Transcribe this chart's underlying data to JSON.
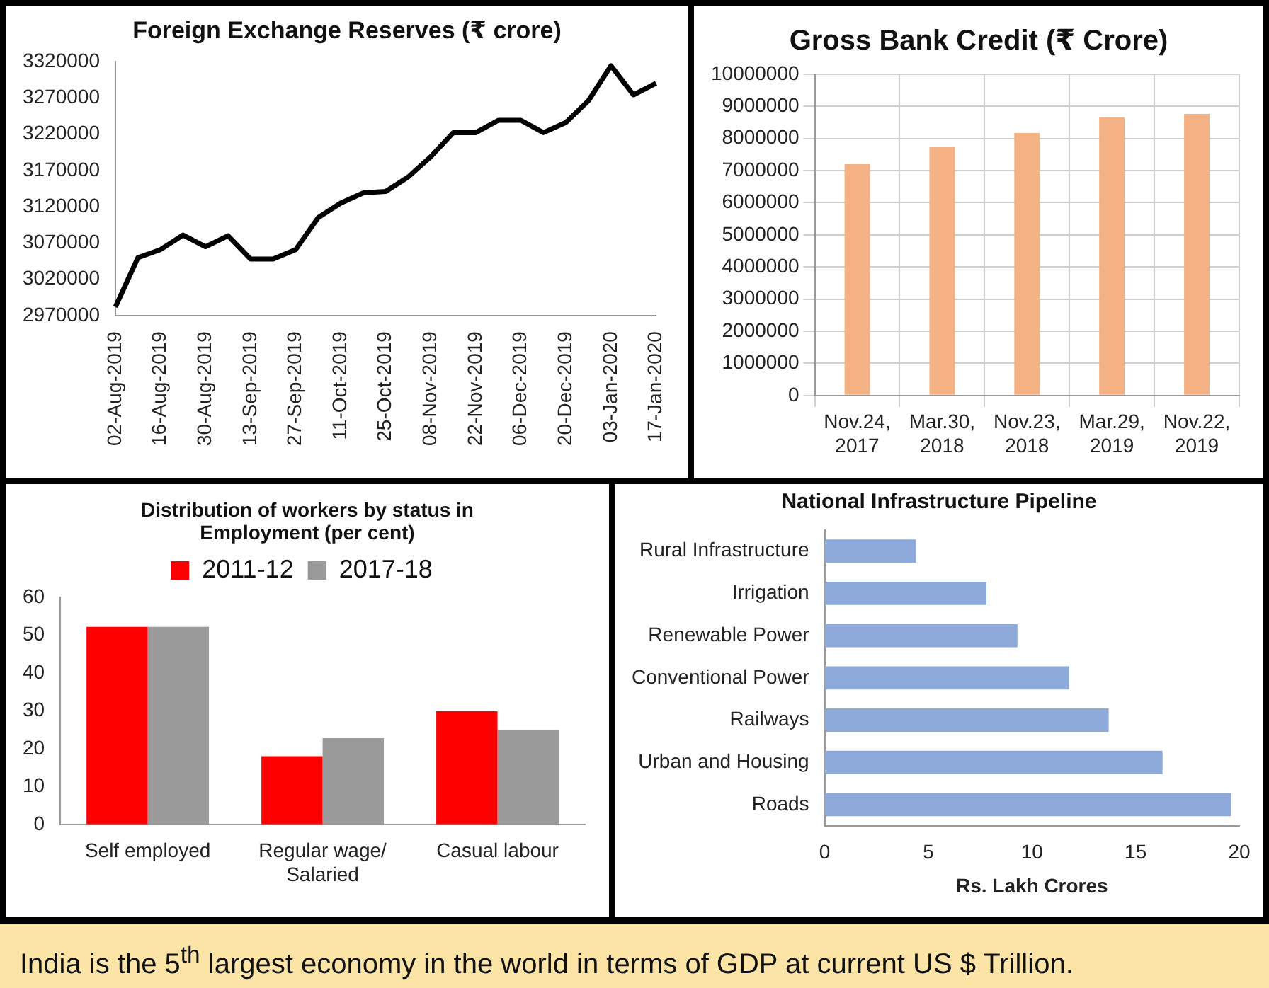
{
  "chart_data": [
    {
      "type": "line",
      "title": "Foreign Exchange Reserves (₹ crore)",
      "categories": [
        "02-Aug-2019",
        null,
        "16-Aug-2019",
        null,
        "30-Aug-2019",
        null,
        "13-Sep-2019",
        null,
        "27-Sep-2019",
        null,
        "11-Oct-2019",
        null,
        "25-Oct-2019",
        null,
        "08-Nov-2019",
        null,
        "22-Nov-2019",
        null,
        "06-Dec-2019",
        null,
        "20-Dec-2019",
        null,
        "03-Jan-2020",
        null,
        "17-Jan-2020"
      ],
      "values": [
        2982000,
        3050000,
        3061000,
        3081000,
        3065000,
        3080000,
        3048000,
        3048000,
        3061000,
        3105000,
        3125000,
        3139000,
        3141000,
        3161000,
        3189000,
        3222000,
        3222000,
        3239000,
        3239000,
        3222000,
        3236000,
        3266000,
        3314000,
        3274000,
        3290000
      ],
      "color": "#000000",
      "marker": "none",
      "line_style": "solid",
      "ylim": [
        2970000,
        3320000
      ],
      "yticks": [
        2970000,
        3020000,
        3070000,
        3120000,
        3170000,
        3220000,
        3270000,
        3320000
      ],
      "grid": false,
      "legend": false
    },
    {
      "type": "bar",
      "title": "Gross Bank Credit (₹ Crore)",
      "categories": [
        "Nov.24, 2017",
        "Mar.30, 2018",
        "Nov.23, 2018",
        "Mar.29, 2019",
        "Nov.22, 2019"
      ],
      "values": [
        7200000,
        7730000,
        8170000,
        8660000,
        8760000
      ],
      "color": "#f4b183",
      "ylim": [
        0,
        10000000
      ],
      "yticks": [
        0,
        1000000,
        2000000,
        3000000,
        4000000,
        5000000,
        6000000,
        7000000,
        8000000,
        9000000,
        10000000
      ],
      "grid": true,
      "legend": false
    },
    {
      "type": "bar",
      "title": "Distribution of workers by status in Employment (per cent)",
      "categories": [
        "Self employed",
        "Regular wage/ Salaried",
        "Casual labour"
      ],
      "series": [
        {
          "name": "2011-12",
          "color": "#ff0000",
          "values": [
            52.2,
            18.0,
            29.9
          ]
        },
        {
          "name": "2017-18",
          "color": "#9a9a9a",
          "values": [
            52.2,
            22.8,
            24.9
          ]
        }
      ],
      "ylim": [
        0,
        60
      ],
      "yticks": [
        0,
        10,
        20,
        30,
        40,
        50,
        60
      ],
      "grid": false,
      "legend": "top"
    },
    {
      "type": "bar",
      "orientation": "horizontal",
      "title": "National Infrastructure Pipeline",
      "xlabel": "Rs. Lakh Crores",
      "categories": [
        "Rural Infrastructure",
        "Irrigation",
        "Renewable Power",
        "Conventional Power",
        "Railways",
        "Urban and Housing",
        "Roads"
      ],
      "values": [
        4.4,
        7.8,
        9.3,
        11.8,
        13.7,
        16.3,
        19.6
      ],
      "color": "#8eaadb",
      "xlim": [
        0,
        20
      ],
      "xticks": [
        0,
        5,
        10,
        15,
        20
      ],
      "grid": false,
      "legend": false
    },
    {
      "type": "other",
      "annotations": [
        "India is the 5$^{th}$ largest economy in the world in terms of GDP at current US $ Trillion."
      ]
    }
  ]
}
